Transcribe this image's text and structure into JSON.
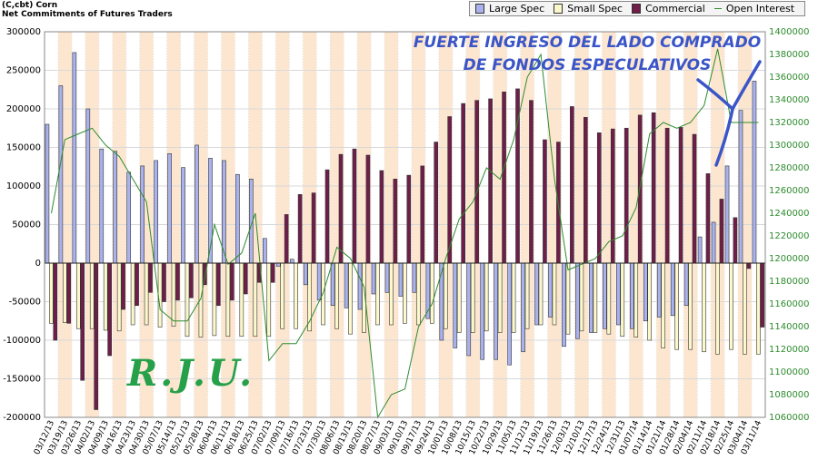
{
  "header": {
    "title_line1": "(C,cbt) Corn",
    "title_line2": "Net Commitments of Futures Traders"
  },
  "legend": {
    "large_spec": "Large Spec",
    "small_spec": "Small Spec",
    "commercial": "Commercial",
    "open_interest": "Open Interest"
  },
  "annotation": {
    "line1": "FUERTE INGRESO DEL LADO COMPRADO",
    "line2": "DE FONDOS ESPECULATIVOS"
  },
  "signature": "R.J.U.",
  "colors": {
    "large_spec": "#aab2ee",
    "small_spec": "#fcf8cc",
    "commercial": "#6e1e48",
    "open_interest": "#2e8b2e",
    "band": "#fde6cf",
    "annotation": "#3a55c8",
    "signature": "#27a04a"
  },
  "chart_data": {
    "type": "bar",
    "title": "(C,cbt) Corn",
    "subtitle": "Net Commitments of Futures Traders",
    "x": [
      "03/12/13",
      "03/19/13",
      "03/26/13",
      "04/02/13",
      "04/09/13",
      "04/16/13",
      "04/23/13",
      "04/30/13",
      "05/07/13",
      "05/14/13",
      "05/21/13",
      "05/28/13",
      "06/04/13",
      "06/11/13",
      "06/18/13",
      "06/25/13",
      "07/02/13",
      "07/09/13",
      "07/16/13",
      "07/23/13",
      "07/30/13",
      "08/06/13",
      "08/13/13",
      "08/20/13",
      "08/27/13",
      "09/03/13",
      "09/10/13",
      "09/17/13",
      "09/24/13",
      "10/01/13",
      "10/08/13",
      "10/15/13",
      "10/22/13",
      "10/29/13",
      "11/05/13",
      "11/12/13",
      "11/19/13",
      "11/26/13",
      "12/03/13",
      "12/10/13",
      "12/17/13",
      "12/24/13",
      "12/31/13",
      "01/07/14",
      "01/14/14",
      "01/21/14",
      "01/28/14",
      "02/04/14",
      "02/11/14",
      "02/18/14",
      "02/25/14",
      "03/04/14",
      "03/11/14"
    ],
    "x_tick_labels": [
      "03/12/13",
      "03/19/13",
      "03/26/13",
      "04/02/13",
      "04/09/13",
      "04/16/13",
      "04/23/13",
      "04/30/13",
      "05/07/13",
      "05/14/13",
      "05/21/13",
      "05/28/13",
      "06/04/13",
      "06/11/13",
      "06/18/13",
      "06/25/13",
      "07/02/13",
      "07/09/13",
      "07/16/13",
      "07/23/13",
      "07/30/13",
      "08/06/13",
      "08/13/13",
      "08/20/13",
      "08/27/13",
      "09/03/13",
      "09/10/13",
      "09/17/13",
      "09/24/13",
      "10/01/13",
      "10/08/13",
      "10/15/13",
      "10/22/13",
      "10/29/13",
      "11/05/13",
      "11/12/13",
      "11/19/13",
      "11/26/13",
      "12/03/13",
      "12/10/13",
      "12/17/13",
      "12/24/13",
      "12/31/13",
      "01/07/14",
      "01/14/14",
      "01/21/14",
      "01/28/14",
      "02/04/14",
      "02/11/14",
      "02/18/14",
      "02/25/14",
      "03/04/14",
      "03/11/14"
    ],
    "ylim": [
      -200000,
      300000
    ],
    "y_ticks": [
      -200000,
      -150000,
      -100000,
      -50000,
      0,
      50000,
      100000,
      150000,
      200000,
      250000,
      300000
    ],
    "y2lim": [
      1060000,
      1400000
    ],
    "y2_ticks": [
      1060000,
      1080000,
      1100000,
      1120000,
      1140000,
      1160000,
      1180000,
      1200000,
      1220000,
      1240000,
      1260000,
      1280000,
      1300000,
      1320000,
      1340000,
      1360000,
      1380000,
      1400000
    ],
    "grid": true,
    "legend_position": "top-right",
    "series": [
      {
        "name": "Large Spec",
        "axis": "left",
        "values": [
          180000,
          230000,
          273000,
          200000,
          148000,
          145000,
          118000,
          126000,
          133000,
          142000,
          124000,
          153000,
          136000,
          133000,
          115000,
          109000,
          32000,
          -4000,
          5000,
          -28000,
          -48000,
          -55000,
          -58000,
          -60000,
          -40000,
          -38000,
          -43000,
          -38000,
          -72000,
          -100000,
          -110000,
          -120000,
          -125000,
          -125000,
          -132000,
          -115000,
          -80000,
          -70000,
          -108000,
          -98000,
          -90000,
          -85000,
          -80000,
          -85000,
          -75000,
          -70000,
          -68000,
          -55000,
          34000,
          53000,
          126000,
          198000,
          236000
        ]
      },
      {
        "name": "Small Spec",
        "axis": "left",
        "values": [
          -78000,
          -77000,
          -85000,
          -85000,
          -87000,
          -88000,
          -80000,
          -80000,
          -83000,
          -82000,
          -95000,
          -96000,
          -94000,
          -95000,
          -95000,
          -95000,
          -95000,
          -85000,
          -85000,
          -88000,
          -80000,
          -85000,
          -92000,
          -90000,
          -80000,
          -80000,
          -78000,
          -80000,
          -78000,
          -85000,
          -90000,
          -90000,
          -88000,
          -90000,
          -90000,
          -85000,
          -80000,
          -80000,
          -92000,
          -88000,
          -90000,
          -92000,
          -95000,
          -96000,
          -100000,
          -110000,
          -112000,
          -112000,
          -115000,
          -118000,
          -112000,
          -118000,
          -118000
        ]
      },
      {
        "name": "Commercial",
        "axis": "left",
        "values": [
          -100000,
          -78000,
          -152000,
          -190000,
          -120000,
          -60000,
          -55000,
          -38000,
          -50000,
          -48000,
          -45000,
          -28000,
          -55000,
          -48000,
          -40000,
          -25000,
          -25000,
          63000,
          89000,
          91000,
          121000,
          141000,
          148000,
          140000,
          120000,
          109000,
          114000,
          126000,
          157000,
          190000,
          207000,
          211000,
          213000,
          222000,
          226000,
          211000,
          160000,
          157000,
          203000,
          189000,
          169000,
          174000,
          175000,
          192000,
          195000,
          175000,
          176000,
          167000,
          116000,
          83000,
          59000,
          -7000,
          -83000
        ]
      },
      {
        "name": "Open Interest",
        "axis": "right",
        "values": [
          1240000,
          1305000,
          1310000,
          1315000,
          1300000,
          1290000,
          1270000,
          1250000,
          1155000,
          1145000,
          1145000,
          1165000,
          1230000,
          1195000,
          1205000,
          1240000,
          1110000,
          1125000,
          1125000,
          1145000,
          1170000,
          1210000,
          1200000,
          1175000,
          1060000,
          1080000,
          1085000,
          1140000,
          1160000,
          1200000,
          1235000,
          1250000,
          1280000,
          1270000,
          1305000,
          1360000,
          1380000,
          1270000,
          1190000,
          1195000,
          1200000,
          1215000,
          1220000,
          1245000,
          1310000,
          1320000,
          1315000,
          1320000,
          1335000,
          1385000,
          1320000,
          1320000,
          1320000
        ]
      }
    ]
  }
}
